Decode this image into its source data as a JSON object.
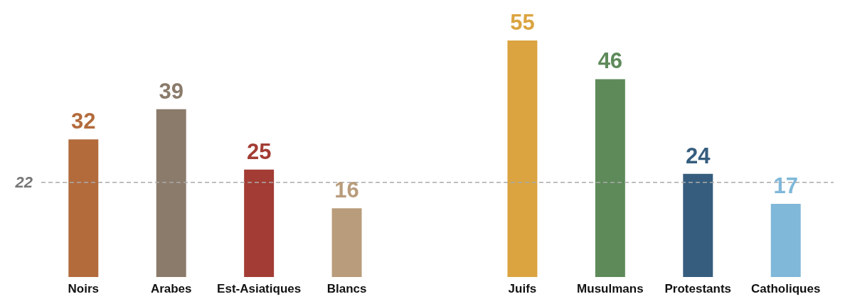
{
  "chart_data": {
    "type": "bar",
    "categories": [
      "Noirs",
      "Arabes",
      "Est-Asiatiques",
      "Blancs",
      null,
      "Juifs",
      "Musulmans",
      "Protestants",
      "Catholiques"
    ],
    "values": [
      32,
      39,
      25,
      16,
      null,
      55,
      46,
      24,
      17
    ],
    "colors": [
      "#b36b3c",
      "#8b7b6b",
      "#a33c34",
      "#b99c7b",
      null,
      "#dba440",
      "#5e8a5a",
      "#365d7e",
      "#7fb8d9"
    ],
    "data_labels": true,
    "grid": false,
    "ref_lines": [
      {
        "axis": "y",
        "value": 22,
        "label": "22",
        "color": "#aaaaaa",
        "line_style": "dashed"
      }
    ]
  }
}
